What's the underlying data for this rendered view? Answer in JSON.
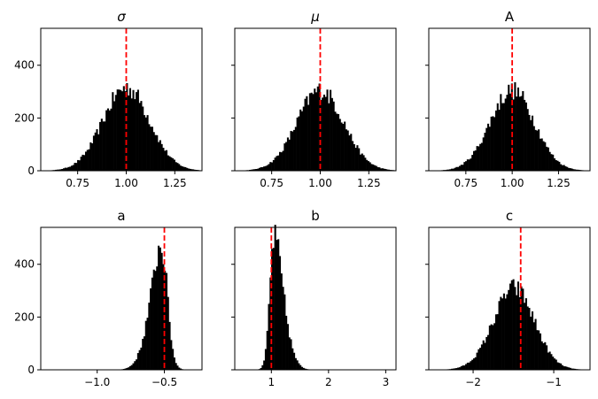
{
  "chart_data": [
    {
      "type": "histogram",
      "title": "σ",
      "title_style": "italic",
      "xlim": [
        0.56,
        1.39
      ],
      "ylim": [
        0,
        540
      ],
      "xticks": [
        0.75,
        1.0,
        1.25
      ],
      "xtick_labels": [
        "0.75",
        "1.00",
        "1.25"
      ],
      "yticks": [
        0,
        200,
        400
      ],
      "ytick_labels": [
        "0",
        "200",
        "400"
      ],
      "reference_line": 1.0,
      "bar_color": "#000000",
      "line_color": "#ff0000",
      "distribution": {
        "mean": 1.0,
        "std": 0.12,
        "peak": 315,
        "skew": 0
      }
    },
    {
      "type": "histogram",
      "title": "μ",
      "title_style": "italic",
      "xlim": [
        0.56,
        1.39
      ],
      "ylim": [
        0,
        540
      ],
      "xticks": [
        0.75,
        1.0,
        1.25
      ],
      "xtick_labels": [
        "0.75",
        "1.00",
        "1.25"
      ],
      "yticks": [
        0,
        200,
        400
      ],
      "ytick_labels": [],
      "reference_line": 1.0,
      "bar_color": "#000000",
      "line_color": "#ff0000",
      "distribution": {
        "mean": 1.0,
        "std": 0.12,
        "peak": 305,
        "skew": 0
      }
    },
    {
      "type": "histogram",
      "title": "A",
      "title_style": "normal",
      "xlim": [
        0.55,
        1.42
      ],
      "ylim": [
        0,
        540
      ],
      "xticks": [
        0.75,
        1.0,
        1.25
      ],
      "xtick_labels": [
        "0.75",
        "1.00",
        "1.25"
      ],
      "yticks": [
        0,
        200,
        400
      ],
      "ytick_labels": [],
      "reference_line": 1.0,
      "bar_color": "#000000",
      "line_color": "#ff0000",
      "distribution": {
        "mean": 0.99,
        "std": 0.12,
        "peak": 305,
        "skew": 0.1
      }
    },
    {
      "type": "histogram",
      "title": "a",
      "title_style": "normal",
      "xlim": [
        -1.42,
        -0.22
      ],
      "ylim": [
        0,
        540
      ],
      "xticks": [
        -1.0,
        -0.5
      ],
      "xtick_labels": [
        "−1.0",
        "−0.5"
      ],
      "yticks": [
        0,
        200,
        400
      ],
      "ytick_labels": [
        "0",
        "200",
        "400"
      ],
      "reference_line": -0.5,
      "bar_color": "#000000",
      "line_color": "#ff0000",
      "distribution": {
        "mean": -0.48,
        "std": 0.1,
        "peak": 470,
        "skew": -2.5
      }
    },
    {
      "type": "histogram",
      "title": "b",
      "title_style": "normal",
      "xlim": [
        0.36,
        3.18
      ],
      "ylim": [
        0,
        540
      ],
      "xticks": [
        1,
        2,
        3
      ],
      "xtick_labels": [
        "1",
        "2",
        "3"
      ],
      "yticks": [
        0,
        200,
        400
      ],
      "ytick_labels": [],
      "reference_line": 1.0,
      "bar_color": "#000000",
      "line_color": "#ff0000",
      "distribution": {
        "mean": 0.97,
        "std": 0.2,
        "peak": 500,
        "skew": 3.2
      }
    },
    {
      "type": "histogram",
      "title": "c",
      "title_style": "normal",
      "xlim": [
        -2.55,
        -0.55
      ],
      "ylim": [
        0,
        540
      ],
      "xticks": [
        -2,
        -1
      ],
      "xtick_labels": [
        "−2",
        "−1"
      ],
      "yticks": [
        0,
        200,
        400
      ],
      "ytick_labels": [],
      "reference_line": -1.41,
      "bar_color": "#000000",
      "line_color": "#ff0000",
      "distribution": {
        "mean": -1.38,
        "std": 0.28,
        "peak": 310,
        "skew": -0.6
      }
    }
  ]
}
